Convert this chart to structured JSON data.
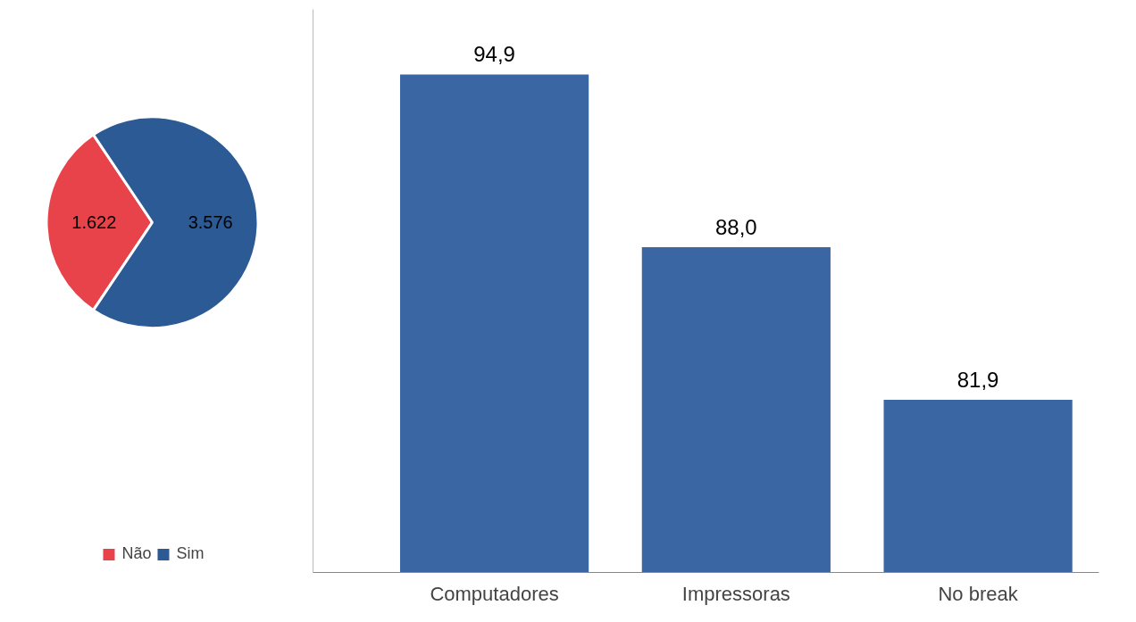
{
  "chart_data": [
    {
      "type": "pie",
      "categories": [
        "Não",
        "Sim"
      ],
      "values": [
        1622,
        3576
      ],
      "colors": [
        "#e8434a",
        "#2b5a95"
      ],
      "value_labels": [
        "1.622",
        "3.576"
      ],
      "legend": "bottom"
    },
    {
      "type": "bar",
      "categories": [
        "Computadores",
        "Impressoras",
        "No break"
      ],
      "values": [
        94.9,
        88.0,
        81.9
      ],
      "color": "#3a67a3",
      "value_labels": [
        "94,9",
        "88,0",
        "81,9"
      ],
      "ylim": [
        75,
        97.5
      ],
      "tick_labels": "x"
    }
  ]
}
